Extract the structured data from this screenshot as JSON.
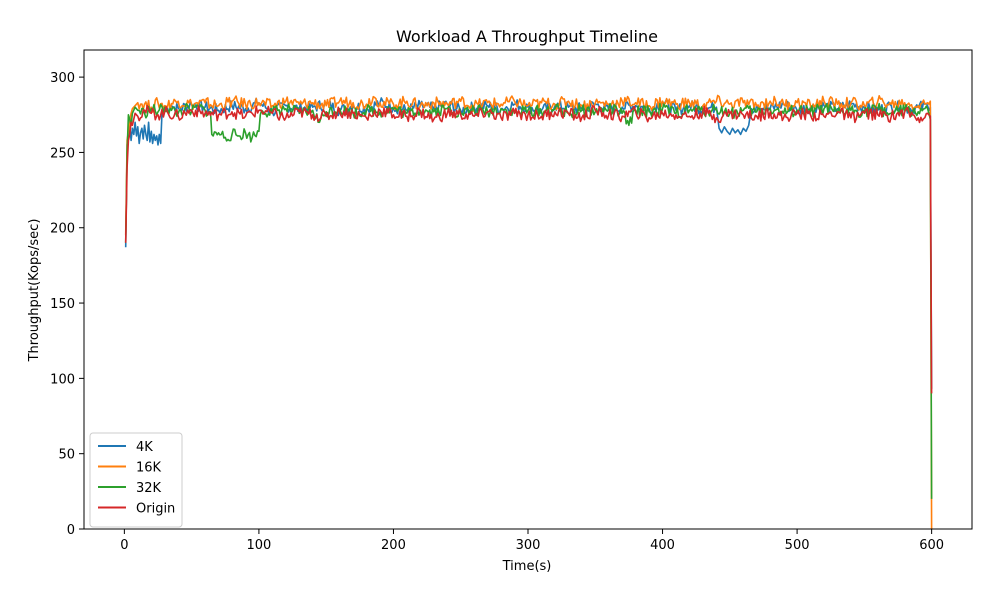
{
  "chart_data": {
    "type": "line",
    "title": "Workload A Throughput Timeline",
    "xlabel": "Time(s)",
    "ylabel": "Throughput(Kops/sec)",
    "xlim": [
      -30,
      630
    ],
    "ylim": [
      0,
      318
    ],
    "xticks": [
      0,
      100,
      200,
      300,
      400,
      500,
      600
    ],
    "yticks": [
      0,
      50,
      100,
      150,
      200,
      250,
      300
    ],
    "grid": false,
    "legend_position": "lower-left",
    "series": [
      {
        "name": "4K",
        "color": "#1f77b4",
        "x": [
          1,
          2,
          3,
          4,
          5,
          6,
          7,
          8,
          9,
          10,
          11,
          12,
          13,
          14,
          15,
          16,
          17,
          18,
          19,
          20,
          21,
          22,
          23,
          24,
          25,
          26,
          27,
          28,
          29,
          30,
          35,
          40,
          50,
          60,
          70,
          80,
          90,
          100,
          110,
          120,
          130,
          140,
          150,
          160,
          170,
          180,
          190,
          200,
          210,
          220,
          230,
          240,
          250,
          260,
          270,
          280,
          290,
          300,
          310,
          320,
          330,
          340,
          350,
          360,
          370,
          380,
          390,
          400,
          410,
          420,
          430,
          440,
          442,
          444,
          446,
          448,
          450,
          452,
          454,
          456,
          458,
          460,
          462,
          464,
          466,
          470,
          480,
          490,
          500,
          510,
          520,
          530,
          540,
          550,
          560,
          570,
          580,
          590,
          597,
          598,
          599,
          600
        ],
        "y": [
          187,
          255,
          262,
          268,
          258,
          266,
          262,
          270,
          261,
          267,
          256,
          263,
          266,
          259,
          268,
          262,
          258,
          270,
          257,
          264,
          256,
          262,
          258,
          261,
          255,
          262,
          256,
          276,
          280,
          278,
          281,
          279,
          282,
          280,
          278,
          281,
          279,
          283,
          277,
          281,
          279,
          280,
          282,
          278,
          281,
          279,
          283,
          280,
          278,
          281,
          279,
          282,
          278,
          280,
          281,
          279,
          282,
          280,
          278,
          281,
          280,
          279,
          282,
          278,
          280,
          281,
          279,
          283,
          278,
          281,
          279,
          280,
          266,
          263,
          267,
          264,
          262,
          266,
          263,
          265,
          262,
          266,
          264,
          268,
          279,
          281,
          279,
          282,
          278,
          280,
          281,
          279,
          282,
          280,
          278,
          281,
          279,
          280,
          281,
          278,
          280,
          93
        ]
      },
      {
        "name": "16K",
        "color": "#ff7f0e",
        "x": [
          1,
          2,
          3,
          4,
          5,
          6,
          8,
          10,
          15,
          20,
          25,
          30,
          40,
          50,
          60,
          70,
          80,
          90,
          100,
          110,
          120,
          130,
          140,
          150,
          160,
          170,
          180,
          185,
          190,
          200,
          210,
          220,
          230,
          240,
          250,
          260,
          270,
          280,
          290,
          300,
          310,
          320,
          330,
          340,
          350,
          360,
          370,
          380,
          390,
          400,
          410,
          420,
          430,
          440,
          450,
          460,
          470,
          480,
          490,
          500,
          510,
          520,
          530,
          540,
          550,
          560,
          570,
          580,
          590,
          597,
          598,
          599,
          600
        ],
        "y": [
          195,
          258,
          264,
          270,
          276,
          279,
          281,
          283,
          282,
          280,
          283,
          281,
          284,
          282,
          283,
          281,
          284,
          282,
          283,
          281,
          284,
          282,
          283,
          281,
          284,
          283,
          282,
          287,
          283,
          282,
          284,
          281,
          283,
          282,
          284,
          281,
          283,
          282,
          284,
          281,
          283,
          282,
          284,
          281,
          283,
          282,
          284,
          283,
          281,
          284,
          282,
          283,
          281,
          284,
          282,
          283,
          281,
          284,
          282,
          283,
          281,
          284,
          282,
          283,
          281,
          284,
          282,
          283,
          281,
          283,
          282,
          284,
          0
        ]
      },
      {
        "name": "32K",
        "color": "#2ca02c",
        "x": [
          1,
          2,
          3,
          4,
          5,
          6,
          8,
          10,
          15,
          20,
          25,
          30,
          35,
          40,
          45,
          50,
          55,
          60,
          64,
          65,
          66,
          70,
          75,
          80,
          85,
          90,
          95,
          100,
          101,
          102,
          110,
          120,
          130,
          140,
          145,
          150,
          160,
          170,
          180,
          190,
          200,
          210,
          220,
          230,
          240,
          250,
          260,
          270,
          280,
          290,
          300,
          310,
          320,
          330,
          340,
          350,
          360,
          370,
          375,
          380,
          390,
          400,
          410,
          420,
          430,
          440,
          450,
          460,
          470,
          480,
          490,
          500,
          510,
          520,
          530,
          540,
          550,
          560,
          570,
          580,
          590,
          597,
          598,
          599,
          600
        ],
        "y": [
          190,
          250,
          275,
          272,
          268,
          276,
          280,
          278,
          276,
          279,
          277,
          280,
          278,
          276,
          279,
          277,
          280,
          278,
          277,
          262,
          261,
          263,
          260,
          262,
          261,
          263,
          260,
          264,
          275,
          278,
          277,
          279,
          276,
          278,
          270,
          277,
          279,
          276,
          278,
          277,
          279,
          276,
          278,
          277,
          279,
          276,
          278,
          277,
          279,
          276,
          278,
          277,
          279,
          276,
          278,
          277,
          279,
          276,
          268,
          278,
          277,
          279,
          276,
          278,
          277,
          279,
          276,
          278,
          277,
          279,
          276,
          278,
          277,
          279,
          276,
          278,
          277,
          279,
          276,
          278,
          277,
          279,
          276,
          272,
          20
        ]
      },
      {
        "name": "Origin",
        "color": "#d62728",
        "x": [
          1,
          2,
          3,
          4,
          5,
          6,
          8,
          10,
          15,
          20,
          25,
          30,
          40,
          50,
          60,
          70,
          80,
          90,
          100,
          110,
          120,
          130,
          140,
          150,
          160,
          170,
          180,
          190,
          200,
          210,
          220,
          230,
          240,
          250,
          260,
          270,
          280,
          290,
          300,
          310,
          320,
          330,
          340,
          350,
          360,
          370,
          380,
          390,
          400,
          410,
          420,
          430,
          440,
          450,
          460,
          470,
          480,
          490,
          500,
          510,
          520,
          530,
          540,
          550,
          560,
          570,
          580,
          590,
          597,
          598,
          599,
          600
        ],
        "y": [
          190,
          240,
          258,
          262,
          270,
          268,
          276,
          274,
          278,
          276,
          275,
          277,
          274,
          278,
          276,
          275,
          277,
          274,
          278,
          276,
          273,
          277,
          275,
          274,
          277,
          276,
          273,
          278,
          275,
          274,
          277,
          272,
          276,
          275,
          274,
          277,
          273,
          276,
          275,
          274,
          277,
          276,
          273,
          278,
          275,
          274,
          277,
          273,
          276,
          275,
          274,
          277,
          273,
          276,
          275,
          274,
          277,
          273,
          276,
          275,
          274,
          277,
          273,
          276,
          275,
          274,
          277,
          273,
          276,
          275,
          274,
          90
        ]
      }
    ]
  }
}
